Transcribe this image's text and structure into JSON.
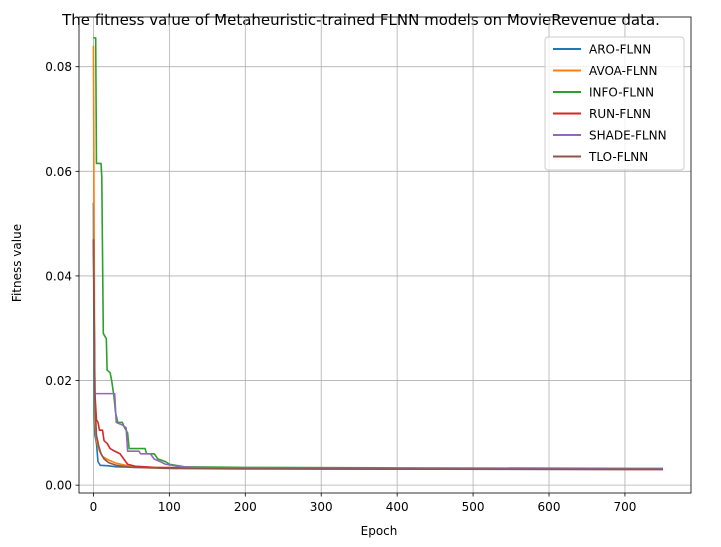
{
  "chart_data": {
    "type": "line",
    "title": "The fitness value of Metaheuristic-trained FLNN models on MovieRevenue data.",
    "xlabel": "Epoch",
    "ylabel": "Fitness value",
    "xlim": [
      -19,
      787
    ],
    "ylim": [
      -0.0015,
      0.0895
    ],
    "xticks": [
      0,
      100,
      200,
      300,
      400,
      500,
      600,
      700
    ],
    "yticks": [
      0.0,
      0.02,
      0.04,
      0.06,
      0.08
    ],
    "ytick_labels": [
      "0.00",
      "0.02",
      "0.04",
      "0.06",
      "0.08"
    ],
    "grid": true,
    "legend_position": "top-right",
    "series": [
      {
        "name": "ARO-FLNN",
        "color": "#1f77b4",
        "points": [
          [
            0,
            0.054
          ],
          [
            1,
            0.013
          ],
          [
            2,
            0.0095
          ],
          [
            4,
            0.008
          ],
          [
            6,
            0.0045
          ],
          [
            9,
            0.0038
          ],
          [
            20,
            0.0037
          ],
          [
            30,
            0.0035
          ],
          [
            60,
            0.0034
          ],
          [
            100,
            0.0033
          ],
          [
            200,
            0.0032
          ],
          [
            400,
            0.0031
          ],
          [
            750,
            0.0031
          ]
        ]
      },
      {
        "name": "AVOA-FLNN",
        "color": "#ff7f0e",
        "points": [
          [
            0,
            0.084
          ],
          [
            1,
            0.045
          ],
          [
            2,
            0.012
          ],
          [
            4,
            0.0085
          ],
          [
            8,
            0.0065
          ],
          [
            12,
            0.0055
          ],
          [
            20,
            0.0048
          ],
          [
            30,
            0.0042
          ],
          [
            45,
            0.0037
          ],
          [
            80,
            0.0034
          ],
          [
            150,
            0.0033
          ],
          [
            300,
            0.0032
          ],
          [
            750,
            0.0031
          ]
        ]
      },
      {
        "name": "INFO-FLNN",
        "color": "#2ca02c",
        "points": [
          [
            0,
            0.0855
          ],
          [
            3,
            0.0855
          ],
          [
            4,
            0.0615
          ],
          [
            10,
            0.0615
          ],
          [
            11,
            0.059
          ],
          [
            13,
            0.029
          ],
          [
            17,
            0.028
          ],
          [
            18,
            0.022
          ],
          [
            22,
            0.0215
          ],
          [
            24,
            0.02
          ],
          [
            27,
            0.017
          ],
          [
            29,
            0.014
          ],
          [
            32,
            0.012
          ],
          [
            38,
            0.012
          ],
          [
            41,
            0.011
          ],
          [
            45,
            0.01
          ],
          [
            47,
            0.007
          ],
          [
            68,
            0.007
          ],
          [
            70,
            0.006
          ],
          [
            80,
            0.006
          ],
          [
            85,
            0.005
          ],
          [
            95,
            0.0045
          ],
          [
            100,
            0.004
          ],
          [
            120,
            0.0035
          ],
          [
            200,
            0.0034
          ],
          [
            400,
            0.0033
          ],
          [
            750,
            0.0032
          ]
        ]
      },
      {
        "name": "RUN-FLNN",
        "color": "#d62728",
        "points": [
          [
            0,
            0.047
          ],
          [
            2,
            0.0175
          ],
          [
            4,
            0.0125
          ],
          [
            6,
            0.012
          ],
          [
            8,
            0.0105
          ],
          [
            12,
            0.0105
          ],
          [
            14,
            0.0085
          ],
          [
            18,
            0.008
          ],
          [
            22,
            0.007
          ],
          [
            28,
            0.0065
          ],
          [
            35,
            0.006
          ],
          [
            40,
            0.005
          ],
          [
            45,
            0.004
          ],
          [
            55,
            0.0036
          ],
          [
            80,
            0.0034
          ],
          [
            150,
            0.0032
          ],
          [
            300,
            0.0031
          ],
          [
            750,
            0.003
          ]
        ]
      },
      {
        "name": "SHADE-FLNN",
        "color": "#9467bd",
        "points": [
          [
            0,
            0.0175
          ],
          [
            28,
            0.0175
          ],
          [
            30,
            0.012
          ],
          [
            38,
            0.0115
          ],
          [
            43,
            0.011
          ],
          [
            45,
            0.0065
          ],
          [
            60,
            0.0065
          ],
          [
            62,
            0.006
          ],
          [
            75,
            0.006
          ],
          [
            80,
            0.005
          ],
          [
            88,
            0.0045
          ],
          [
            95,
            0.004
          ],
          [
            115,
            0.0035
          ],
          [
            160,
            0.0033
          ],
          [
            300,
            0.0032
          ],
          [
            750,
            0.0031
          ]
        ]
      },
      {
        "name": "TLO-FLNN",
        "color": "#8c564b",
        "points": [
          [
            0,
            0.047
          ],
          [
            2,
            0.016
          ],
          [
            4,
            0.0095
          ],
          [
            7,
            0.0075
          ],
          [
            10,
            0.006
          ],
          [
            14,
            0.005
          ],
          [
            20,
            0.0043
          ],
          [
            30,
            0.0038
          ],
          [
            50,
            0.0034
          ],
          [
            100,
            0.0032
          ],
          [
            200,
            0.0031
          ],
          [
            750,
            0.003
          ]
        ]
      }
    ]
  }
}
